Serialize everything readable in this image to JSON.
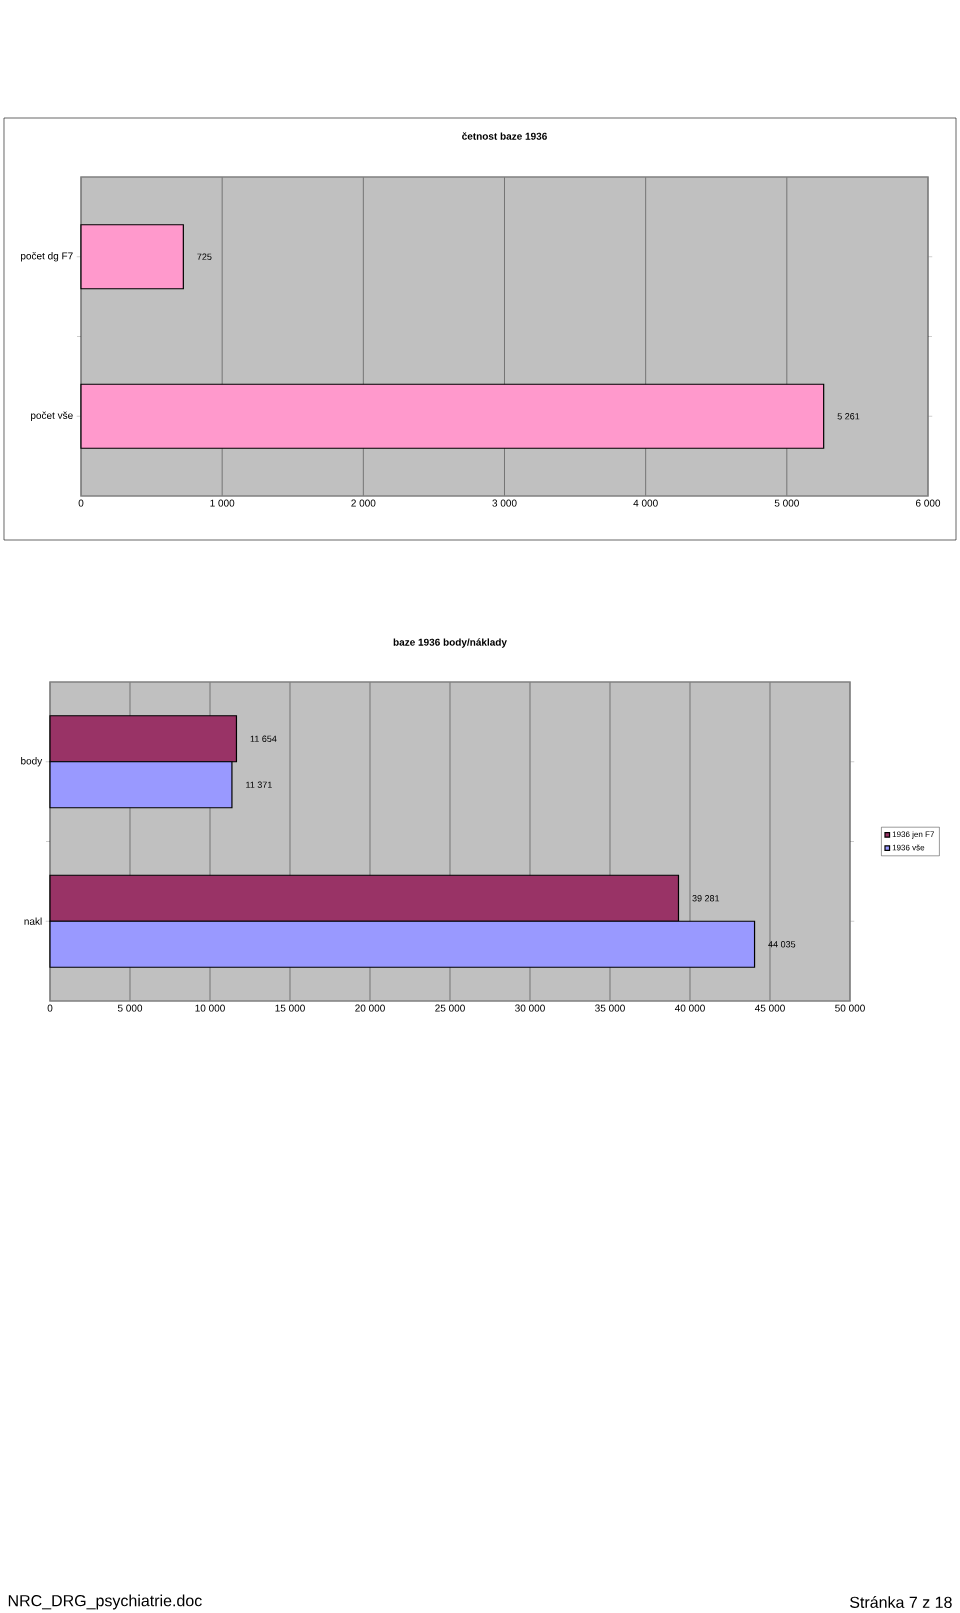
{
  "chart_data": [
    {
      "type": "bar",
      "orientation": "horizontal",
      "title": "četnost baze 1936",
      "categories": [
        "počet dg F7",
        "počet vše"
      ],
      "values": [
        725,
        5261
      ],
      "value_labels": [
        "725",
        "5 261"
      ],
      "color": "#ff99cc",
      "xlim": [
        0,
        6000
      ],
      "xticks": [
        0,
        {
          "value": 1000,
          "label": "1 000"
        },
        {
          "value": 2000,
          "label": "2 000"
        },
        {
          "value": 3000,
          "label": "3 000"
        },
        {
          "value": 4000,
          "label": "4 000"
        },
        {
          "value": 5000,
          "label": "5 000"
        },
        {
          "value": 6000,
          "label": "6 000"
        }
      ],
      "grid": "x"
    },
    {
      "type": "bar",
      "orientation": "horizontal",
      "title": "baze 1936 body/náklady",
      "categories": [
        "body",
        "nakl"
      ],
      "series": [
        {
          "name": "1936 jen F7",
          "color": "#993366",
          "values": [
            11654,
            39281
          ],
          "value_labels": [
            "11 654",
            "39 281"
          ]
        },
        {
          "name": "1936 vše",
          "color": "#9999ff",
          "values": [
            11371,
            44035
          ],
          "value_labels": [
            "11 371",
            "44 035"
          ]
        }
      ],
      "xlim": [
        0,
        50000
      ],
      "xticks": [
        0,
        {
          "value": 5000,
          "label": "5 000"
        },
        {
          "value": 10000,
          "label": "10 000"
        },
        {
          "value": 15000,
          "label": "15 000"
        },
        {
          "value": 20000,
          "label": "20 000"
        },
        {
          "value": 25000,
          "label": "25 000"
        },
        {
          "value": 30000,
          "label": "30 000"
        },
        {
          "value": 35000,
          "label": "35 000"
        },
        {
          "value": 40000,
          "label": "40 000"
        },
        {
          "value": 45000,
          "label": "45 000"
        },
        {
          "value": 50000,
          "label": "50 000"
        }
      ],
      "grid": "x",
      "legend": "right",
      "annotations": [
        "NRC_DRG_psychiatrie.doc",
        "Stránka 7 z 18"
      ]
    }
  ]
}
